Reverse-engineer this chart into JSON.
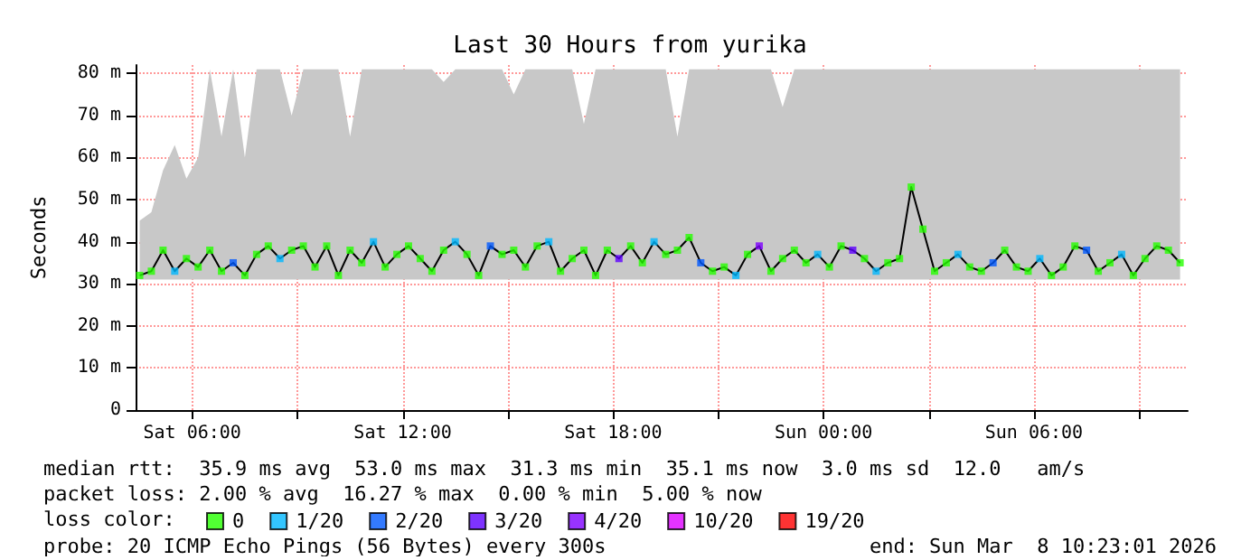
{
  "chart_data": {
    "type": "line",
    "title": "Last 30 Hours from yurika",
    "ylabel": "Seconds",
    "xlim": [
      "2026-03-07T04:23",
      "2026-03-08T10:23"
    ],
    "xticks": [
      {
        "value": "2026-03-07T06:00",
        "label": "Sat 06:00"
      },
      {
        "value": "2026-03-07T09:00",
        "label": null
      },
      {
        "value": "2026-03-07T12:00",
        "label": "Sat 12:00"
      },
      {
        "value": "2026-03-07T15:00",
        "label": null
      },
      {
        "value": "2026-03-07T18:00",
        "label": "Sat 18:00"
      },
      {
        "value": "2026-03-07T21:00",
        "label": null
      },
      {
        "value": "2026-03-08T00:00",
        "label": "Sun 00:00"
      },
      {
        "value": "2026-03-08T03:00",
        "label": null
      },
      {
        "value": "2026-03-08T06:00",
        "label": "Sun 06:00"
      },
      {
        "value": "2026-03-08T09:00",
        "label": null
      }
    ],
    "ylim": [
      0,
      82
    ],
    "yticks": [
      0,
      {
        "value": 10,
        "label": "10 m"
      },
      {
        "value": 20,
        "label": "20 m"
      },
      {
        "value": 30,
        "label": "30 m"
      },
      {
        "value": 40,
        "label": "40 m"
      },
      {
        "value": 50,
        "label": "50 m"
      },
      {
        "value": 60,
        "label": "60 m"
      },
      {
        "value": 70,
        "label": "70 m"
      },
      {
        "value": 80,
        "label": "80 m"
      }
    ],
    "grid": true,
    "legend": "bottom",
    "legend_title": "loss color:",
    "marker": "square",
    "x": [
      "2026-03-07T04:30",
      "2026-03-07T04:50",
      "2026-03-07T05:10",
      "2026-03-07T05:30",
      "2026-03-07T05:50",
      "2026-03-07T06:10",
      "2026-03-07T06:30",
      "2026-03-07T06:50",
      "2026-03-07T07:10",
      "2026-03-07T07:30",
      "2026-03-07T07:50",
      "2026-03-07T08:10",
      "2026-03-07T08:30",
      "2026-03-07T08:50",
      "2026-03-07T09:10",
      "2026-03-07T09:30",
      "2026-03-07T09:50",
      "2026-03-07T10:10",
      "2026-03-07T10:30",
      "2026-03-07T10:50",
      "2026-03-07T11:10",
      "2026-03-07T11:30",
      "2026-03-07T11:50",
      "2026-03-07T12:10",
      "2026-03-07T12:30",
      "2026-03-07T12:50",
      "2026-03-07T13:10",
      "2026-03-07T13:30",
      "2026-03-07T13:50",
      "2026-03-07T14:10",
      "2026-03-07T14:30",
      "2026-03-07T14:50",
      "2026-03-07T15:10",
      "2026-03-07T15:30",
      "2026-03-07T15:50",
      "2026-03-07T16:10",
      "2026-03-07T16:30",
      "2026-03-07T16:50",
      "2026-03-07T17:10",
      "2026-03-07T17:30",
      "2026-03-07T17:50",
      "2026-03-07T18:10",
      "2026-03-07T18:30",
      "2026-03-07T18:50",
      "2026-03-07T19:10",
      "2026-03-07T19:30",
      "2026-03-07T19:50",
      "2026-03-07T20:10",
      "2026-03-07T20:30",
      "2026-03-07T20:50",
      "2026-03-07T21:10",
      "2026-03-07T21:30",
      "2026-03-07T21:50",
      "2026-03-07T22:10",
      "2026-03-07T22:30",
      "2026-03-07T22:50",
      "2026-03-07T23:10",
      "2026-03-07T23:30",
      "2026-03-07T23:50",
      "2026-03-08T00:10",
      "2026-03-08T00:30",
      "2026-03-08T00:50",
      "2026-03-08T01:10",
      "2026-03-08T01:30",
      "2026-03-08T01:50",
      "2026-03-08T02:10",
      "2026-03-08T02:30",
      "2026-03-08T02:50",
      "2026-03-08T03:10",
      "2026-03-08T03:30",
      "2026-03-08T03:50",
      "2026-03-08T04:10",
      "2026-03-08T04:30",
      "2026-03-08T04:50",
      "2026-03-08T05:10",
      "2026-03-08T05:30",
      "2026-03-08T05:50",
      "2026-03-08T06:10",
      "2026-03-08T06:30",
      "2026-03-08T06:50",
      "2026-03-08T07:10",
      "2026-03-08T07:30",
      "2026-03-08T07:50",
      "2026-03-08T08:10",
      "2026-03-08T08:30",
      "2026-03-08T08:50",
      "2026-03-08T09:10",
      "2026-03-08T09:30",
      "2026-03-08T09:50",
      "2026-03-08T10:10"
    ],
    "series": [
      {
        "color": "#000000",
        "marker": "none",
        "values": [
          32,
          33,
          38,
          33,
          36,
          34,
          38,
          33,
          35,
          32,
          37,
          39,
          36,
          38,
          39,
          34,
          39,
          32,
          38,
          35,
          40,
          34,
          37,
          39,
          36,
          33,
          38,
          40,
          37,
          32,
          39,
          37,
          38,
          34,
          39,
          40,
          33,
          36,
          38,
          32,
          38,
          36,
          39,
          35,
          40,
          37,
          38,
          41,
          35,
          33,
          34,
          32,
          37,
          39,
          33,
          36,
          38,
          35,
          37,
          34,
          39,
          38,
          36,
          33,
          35,
          36,
          53,
          43,
          33,
          35,
          37,
          34,
          33,
          35,
          38,
          34,
          33,
          36,
          32,
          34,
          39,
          38,
          33,
          35,
          37,
          32,
          36,
          39,
          38,
          35
        ],
        "lower": [
          31,
          31,
          31,
          31,
          31,
          31,
          31,
          31,
          31,
          31,
          31,
          31,
          31,
          31,
          31,
          31,
          31,
          31,
          31,
          31,
          31,
          31,
          31,
          31,
          31,
          31,
          31,
          31,
          31,
          31,
          31,
          31,
          31,
          31,
          31,
          31,
          31,
          31,
          31,
          31,
          31,
          31,
          31,
          31,
          31,
          31,
          31,
          31,
          31,
          31,
          31,
          31,
          31,
          31,
          31,
          31,
          31,
          31,
          31,
          31,
          31,
          31,
          31,
          31,
          31,
          31,
          31,
          31,
          31,
          31,
          31,
          31,
          31,
          31,
          31,
          31,
          31,
          31,
          31,
          31,
          31,
          31,
          31,
          31,
          31,
          31,
          31,
          31,
          31,
          31
        ],
        "upper": [
          45,
          47,
          57,
          63,
          55,
          60,
          81,
          65,
          81,
          60,
          81,
          81,
          81,
          70,
          81,
          81,
          81,
          81,
          65,
          81,
          81,
          81,
          81,
          81,
          81,
          81,
          78,
          81,
          81,
          81,
          81,
          81,
          75,
          81,
          81,
          81,
          81,
          81,
          68,
          81,
          81,
          81,
          81,
          81,
          81,
          81,
          65,
          81,
          81,
          81,
          81,
          81,
          81,
          81,
          81,
          72,
          81,
          81,
          81,
          81,
          81,
          81,
          81,
          81,
          81,
          81,
          81,
          81,
          81,
          81,
          81,
          81,
          81,
          81,
          81,
          81,
          81,
          81,
          81,
          81,
          81,
          81,
          81,
          81,
          81,
          81,
          81,
          81,
          81,
          81
        ]
      },
      {
        "type": "scatter",
        "name": "0",
        "color": "#26ff00",
        "values": [
          32,
          33,
          38,
          null,
          36,
          34,
          38,
          33,
          null,
          32,
          37,
          39,
          null,
          38,
          39,
          34,
          39,
          32,
          38,
          35,
          null,
          34,
          37,
          39,
          36,
          33,
          38,
          null,
          37,
          32,
          null,
          37,
          38,
          34,
          39,
          null,
          33,
          36,
          38,
          32,
          38,
          null,
          39,
          35,
          null,
          37,
          38,
          41,
          null,
          33,
          34,
          null,
          37,
          null,
          33,
          36,
          38,
          35,
          null,
          34,
          39,
          null,
          36,
          null,
          35,
          36,
          53,
          43,
          33,
          35,
          null,
          34,
          33,
          null,
          38,
          34,
          33,
          null,
          32,
          34,
          39,
          null,
          33,
          35,
          null,
          32,
          36,
          39,
          38,
          35
        ]
      },
      {
        "type": "scatter",
        "name": "1/20",
        "color": "#00b8ff",
        "x": [
          "2026-03-07T05:30",
          "2026-03-07T08:30",
          "2026-03-07T11:10",
          "2026-03-07T13:30",
          "2026-03-07T16:10",
          "2026-03-07T19:10",
          "2026-03-07T21:30",
          "2026-03-07T23:50",
          "2026-03-08T01:30",
          "2026-03-08T03:50",
          "2026-03-08T06:10",
          "2026-03-08T08:30"
        ],
        "values": [
          33,
          36,
          40,
          40,
          40,
          40,
          32,
          37,
          33,
          37,
          36,
          37
        ]
      },
      {
        "type": "scatter",
        "name": "2/20",
        "color": "#0059ff",
        "x": [
          "2026-03-07T07:10",
          "2026-03-07T14:30",
          "2026-03-07T20:30",
          "2026-03-08T04:50",
          "2026-03-08T07:30"
        ],
        "values": [
          35,
          39,
          35,
          35,
          38
        ]
      },
      {
        "type": "scatter",
        "name": "3/20",
        "color": "#5e00ff",
        "x": [
          "2026-03-07T18:10",
          "2026-03-08T00:50"
        ],
        "values": [
          36,
          38
        ]
      },
      {
        "type": "scatter",
        "name": "4/20",
        "color": "#7e00ff",
        "x": [
          "2026-03-07T22:10"
        ],
        "values": [
          39
        ]
      },
      {
        "type": "scatter",
        "name": "10/20",
        "color": "#dd00ff",
        "values": [
          null,
          null,
          null,
          null,
          null,
          null,
          null,
          null,
          null,
          null,
          null,
          null,
          null,
          null,
          null,
          null,
          null,
          null,
          null,
          null,
          null,
          null,
          null,
          null,
          null,
          null,
          null,
          null,
          null,
          null,
          null,
          null,
          null,
          null,
          null,
          null,
          null,
          null,
          null,
          null,
          null,
          null,
          null,
          null,
          null,
          null,
          null,
          null,
          null,
          null,
          null,
          null,
          null,
          null,
          null,
          null,
          null,
          null,
          null,
          null,
          null,
          null,
          null,
          null,
          null,
          null,
          null,
          null,
          null,
          null,
          null,
          null,
          null,
          null,
          null,
          null,
          null,
          null,
          null,
          null,
          null,
          null,
          null,
          null,
          null,
          null,
          null,
          null,
          null,
          null
        ]
      },
      {
        "type": "scatter",
        "name": "19/20",
        "color": "#ff0000",
        "values": [
          null,
          null,
          null,
          null,
          null,
          null,
          null,
          null,
          null,
          null,
          null,
          null,
          null,
          null,
          null,
          null,
          null,
          null,
          null,
          null,
          null,
          null,
          null,
          null,
          null,
          null,
          null,
          null,
          null,
          null,
          null,
          null,
          null,
          null,
          null,
          null,
          null,
          null,
          null,
          null,
          null,
          null,
          null,
          null,
          null,
          null,
          null,
          null,
          null,
          null,
          null,
          null,
          null,
          null,
          null,
          null,
          null,
          null,
          null,
          null,
          null,
          null,
          null,
          null,
          null,
          null,
          null,
          null,
          null,
          null,
          null,
          null,
          null,
          null,
          null,
          null,
          null,
          null,
          null,
          null,
          null,
          null,
          null,
          null,
          null,
          null,
          null,
          null,
          null,
          null
        ]
      }
    ],
    "annotations": [
      "median rtt:  35.9 ms avg  53.0 ms max  31.3 ms min  35.1 ms now  3.0 ms sd  12.0   am/s",
      "packet loss: 2.00 % avg  16.27 % max  0.00 % min  5.00 % now",
      "probe: 20 ICMP Echo Pings (56 Bytes) every 300s",
      "end: Sun Mar  8 10:23:01 2026"
    ]
  }
}
